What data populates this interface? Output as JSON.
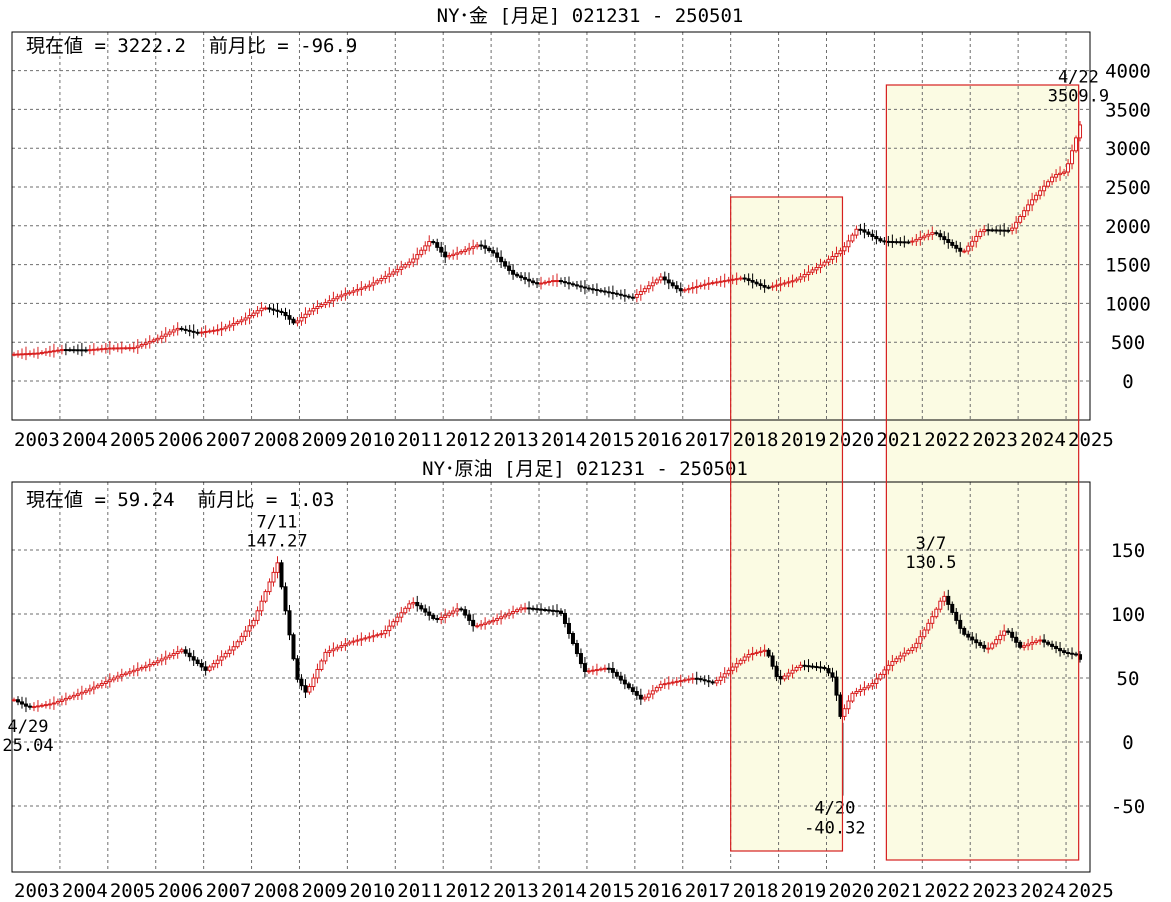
{
  "chart_data": [
    {
      "type": "candlestick",
      "title": "NY･金 [月足] 021231 - 250501",
      "info": "現在値 = 3222.2  前月比 = -96.9",
      "ylim": [
        -500,
        4500
      ],
      "yticks": [
        0,
        500,
        1000,
        1500,
        2000,
        2500,
        3000,
        3500,
        4000
      ],
      "xtick_labels": [
        "2003",
        "2004",
        "2005",
        "2006",
        "2007",
        "2008",
        "2009",
        "2010",
        "2011",
        "2012",
        "2013",
        "2014",
        "2015",
        "2016",
        "2017",
        "2018",
        "2019",
        "2020",
        "2021",
        "2022",
        "2023",
        "2024",
        "2025"
      ],
      "series": [
        {
          "x": 2003.0,
          "y": 345
        },
        {
          "x": 2003.5,
          "y": 360
        },
        {
          "x": 2004.0,
          "y": 405
        },
        {
          "x": 2004.5,
          "y": 400
        },
        {
          "x": 2005.0,
          "y": 425
        },
        {
          "x": 2005.5,
          "y": 430
        },
        {
          "x": 2006.0,
          "y": 550
        },
        {
          "x": 2006.4,
          "y": 680
        },
        {
          "x": 2006.8,
          "y": 620
        },
        {
          "x": 2007.3,
          "y": 665
        },
        {
          "x": 2007.8,
          "y": 800
        },
        {
          "x": 2008.2,
          "y": 950
        },
        {
          "x": 2008.6,
          "y": 880
        },
        {
          "x": 2008.85,
          "y": 740
        },
        {
          "x": 2009.2,
          "y": 920
        },
        {
          "x": 2009.8,
          "y": 1100
        },
        {
          "x": 2010.4,
          "y": 1230
        },
        {
          "x": 2010.9,
          "y": 1400
        },
        {
          "x": 2011.3,
          "y": 1550
        },
        {
          "x": 2011.7,
          "y": 1820
        },
        {
          "x": 2012.0,
          "y": 1600
        },
        {
          "x": 2012.3,
          "y": 1660
        },
        {
          "x": 2012.7,
          "y": 1760
        },
        {
          "x": 2013.0,
          "y": 1650
        },
        {
          "x": 2013.4,
          "y": 1380
        },
        {
          "x": 2013.9,
          "y": 1250
        },
        {
          "x": 2014.3,
          "y": 1300
        },
        {
          "x": 2014.9,
          "y": 1200
        },
        {
          "x": 2015.5,
          "y": 1130
        },
        {
          "x": 2015.9,
          "y": 1070
        },
        {
          "x": 2016.5,
          "y": 1340
        },
        {
          "x": 2016.9,
          "y": 1160
        },
        {
          "x": 2017.5,
          "y": 1260
        },
        {
          "x": 2018.2,
          "y": 1330
        },
        {
          "x": 2018.7,
          "y": 1200
        },
        {
          "x": 2019.3,
          "y": 1300
        },
        {
          "x": 2019.8,
          "y": 1480
        },
        {
          "x": 2020.3,
          "y": 1700
        },
        {
          "x": 2020.6,
          "y": 1970
        },
        {
          "x": 2021.1,
          "y": 1800
        },
        {
          "x": 2021.7,
          "y": 1790
        },
        {
          "x": 2022.2,
          "y": 1920
        },
        {
          "x": 2022.8,
          "y": 1650
        },
        {
          "x": 2023.2,
          "y": 1950
        },
        {
          "x": 2023.8,
          "y": 1940
        },
        {
          "x": 2024.2,
          "y": 2300
        },
        {
          "x": 2024.7,
          "y": 2650
        },
        {
          "x": 2024.95,
          "y": 2700
        },
        {
          "x": 2025.15,
          "y": 3100
        },
        {
          "x": 2025.25,
          "y": 3300
        },
        {
          "x": 2025.33,
          "y": 3222.2
        }
      ],
      "annotations": [
        {
          "date": "4/22",
          "value": "3509.9",
          "x": 2025.3,
          "y": 3509.9
        }
      ]
    },
    {
      "type": "candlestick",
      "title": "NY･原油 [月足] 021231 - 250501",
      "info": "現在値 = 59.24  前月比 = 1.03",
      "ylim": [
        -85,
        200
      ],
      "yticks": [
        -50,
        0,
        50,
        100,
        150
      ],
      "xtick_labels": [
        "2003",
        "2004",
        "2005",
        "2006",
        "2007",
        "2008",
        "2009",
        "2010",
        "2011",
        "2012",
        "2013",
        "2014",
        "2015",
        "2016",
        "2017",
        "2018",
        "2019",
        "2020",
        "2021",
        "2022",
        "2023",
        "2024",
        "2025"
      ],
      "series": [
        {
          "x": 2003.0,
          "y": 33
        },
        {
          "x": 2003.3,
          "y": 27
        },
        {
          "x": 2003.8,
          "y": 30
        },
        {
          "x": 2004.5,
          "y": 40
        },
        {
          "x": 2005.2,
          "y": 52
        },
        {
          "x": 2005.8,
          "y": 60
        },
        {
          "x": 2006.5,
          "y": 72
        },
        {
          "x": 2007.0,
          "y": 56
        },
        {
          "x": 2007.6,
          "y": 75
        },
        {
          "x": 2008.0,
          "y": 95
        },
        {
          "x": 2008.5,
          "y": 140
        },
        {
          "x": 2008.9,
          "y": 50
        },
        {
          "x": 2009.1,
          "y": 38
        },
        {
          "x": 2009.5,
          "y": 70
        },
        {
          "x": 2010.0,
          "y": 78
        },
        {
          "x": 2010.7,
          "y": 85
        },
        {
          "x": 2011.3,
          "y": 110
        },
        {
          "x": 2011.8,
          "y": 95
        },
        {
          "x": 2012.3,
          "y": 105
        },
        {
          "x": 2012.6,
          "y": 90
        },
        {
          "x": 2013.0,
          "y": 95
        },
        {
          "x": 2013.6,
          "y": 105
        },
        {
          "x": 2014.4,
          "y": 102
        },
        {
          "x": 2014.9,
          "y": 55
        },
        {
          "x": 2015.4,
          "y": 58
        },
        {
          "x": 2015.9,
          "y": 40
        },
        {
          "x": 2016.1,
          "y": 33
        },
        {
          "x": 2016.5,
          "y": 45
        },
        {
          "x": 2017.2,
          "y": 50
        },
        {
          "x": 2017.6,
          "y": 46
        },
        {
          "x": 2018.3,
          "y": 68
        },
        {
          "x": 2018.7,
          "y": 72
        },
        {
          "x": 2018.95,
          "y": 48
        },
        {
          "x": 2019.4,
          "y": 60
        },
        {
          "x": 2019.9,
          "y": 58
        },
        {
          "x": 2020.1,
          "y": 50
        },
        {
          "x": 2020.25,
          "y": 20
        },
        {
          "x": 2020.5,
          "y": 38
        },
        {
          "x": 2020.9,
          "y": 45
        },
        {
          "x": 2021.3,
          "y": 62
        },
        {
          "x": 2021.8,
          "y": 75
        },
        {
          "x": 2022.2,
          "y": 100
        },
        {
          "x": 2022.4,
          "y": 115
        },
        {
          "x": 2022.8,
          "y": 85
        },
        {
          "x": 2023.3,
          "y": 72
        },
        {
          "x": 2023.7,
          "y": 88
        },
        {
          "x": 2024.0,
          "y": 74
        },
        {
          "x": 2024.4,
          "y": 80
        },
        {
          "x": 2024.9,
          "y": 70
        },
        {
          "x": 2025.2,
          "y": 68
        },
        {
          "x": 2025.33,
          "y": 59.24
        }
      ],
      "annotations": [
        {
          "date": "4/29",
          "value": "25.04",
          "x": 2003.3,
          "y": 25.04
        },
        {
          "date": "7/11",
          "value": "147.27",
          "x": 2008.53,
          "y": 147.27
        },
        {
          "date": "4/20",
          "value": "-40.32",
          "x": 2020.3,
          "y": -40.32
        },
        {
          "date": "3/7",
          "value": "130.5",
          "x": 2022.18,
          "y": 130.5
        }
      ]
    }
  ],
  "highlights": [
    {
      "from": 2018.0,
      "to": 2020.25
    },
    {
      "from": 2021.25,
      "to": 2025.18
    }
  ],
  "colors": {
    "up": "#d81f1f",
    "down": "#000000",
    "highlight_fill": "#fbfbe3",
    "highlight_stroke": "#d62020",
    "grid": "#6e6e6e"
  }
}
